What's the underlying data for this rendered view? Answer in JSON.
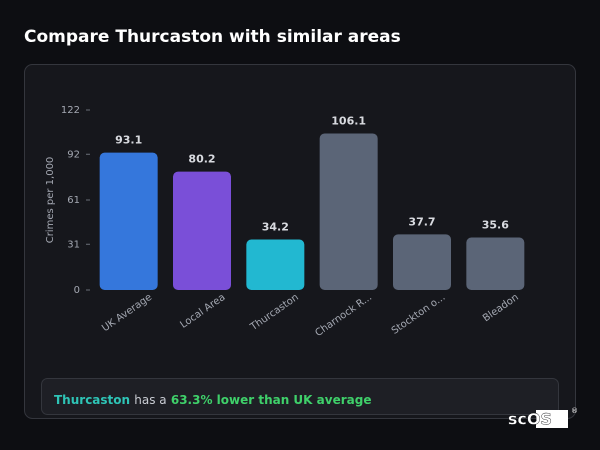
{
  "header": {
    "title": "Compare Thurcaston with similar areas"
  },
  "chart_data": {
    "type": "bar",
    "y_label": "Crimes per 1,000",
    "categories": [
      "UK Average",
      "Local Area",
      "Thurcaston",
      "Charnock R...",
      "Stockton o...",
      "Bleadon"
    ],
    "values": [
      93.1,
      80.2,
      34.2,
      106.1,
      37.7,
      35.6
    ],
    "colors": [
      "#3577dc",
      "#7a4fd8",
      "#22b8d1",
      "#5b6577",
      "#5b6577",
      "#5b6577"
    ],
    "ylim": [
      0,
      122
    ],
    "yticks": [
      0,
      31,
      61,
      92,
      122
    ],
    "grid": false
  },
  "summary": {
    "area": "Thurcaston",
    "text": "has a",
    "highlight": "63.3% lower than UK average"
  },
  "logo": {
    "text": "scOS",
    "mark": "®"
  }
}
